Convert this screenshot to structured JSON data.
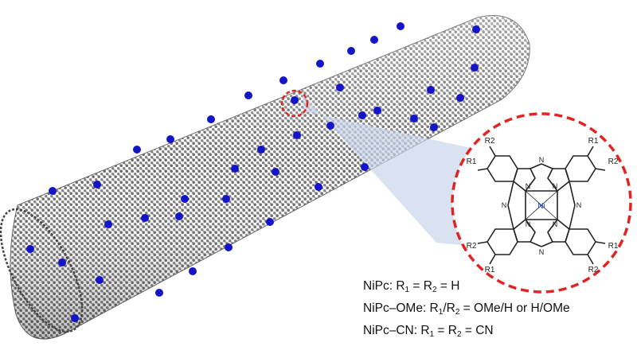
{
  "structure": {
    "r1_label": "R1",
    "r2_label": "R2",
    "nitrogen_label": "N",
    "metal_label": "Ni",
    "colors": {
      "metal": "#1a3fd6",
      "highlight_ring": "#e02424",
      "carbon_atom": "#7a7a7a",
      "dopant_atom": "#1414c8",
      "projection_cone": "#c9d6ea"
    }
  },
  "legend": [
    {
      "name": "NiPc",
      "formula_parts": [
        ":",
        " R",
        "1",
        " = R",
        "2",
        " = H"
      ]
    },
    {
      "name": "NiPc–OMe",
      "formula_parts": [
        ": R",
        "1",
        "/R",
        "2",
        " = OMe/H or H/OMe"
      ]
    },
    {
      "name": "NiPc–CN",
      "formula_parts": [
        ": R",
        "1",
        " = R",
        "2",
        " = CN"
      ]
    }
  ]
}
